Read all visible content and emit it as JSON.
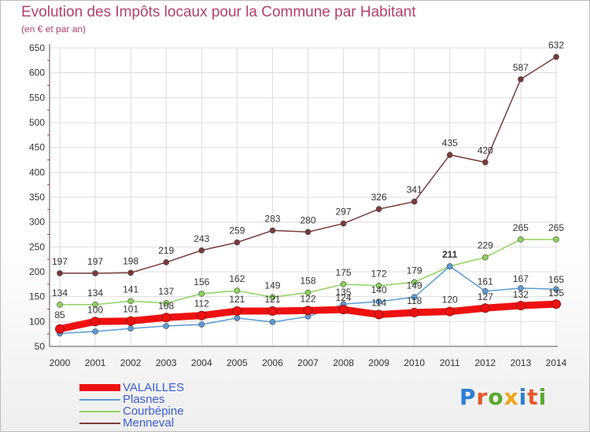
{
  "header": {
    "title": "Evolution des Impôts locaux pour la Commune par Habitant",
    "subtitle": "(en € et par an)"
  },
  "logo": {
    "text": "Proxiti",
    "letter_colors": [
      "#2b7fd6",
      "#e8562a",
      "#58a82e",
      "#f2a319",
      "#2b7fd6",
      "#e8562a",
      "#58a82e"
    ]
  },
  "chart_data": {
    "type": "line",
    "title": "Evolution des Impôts locaux pour la Commune par Habitant",
    "subtitle": "(en € et par an)",
    "xlabel": "",
    "ylabel": "",
    "x": [
      2000,
      2001,
      2002,
      2003,
      2004,
      2005,
      2006,
      2007,
      2008,
      2009,
      2010,
      2011,
      2012,
      2013,
      2014
    ],
    "ylim": [
      50,
      650
    ],
    "yticks": [
      50,
      100,
      150,
      200,
      250,
      300,
      350,
      400,
      450,
      500,
      550,
      600,
      650
    ],
    "grid": true,
    "legend_position": "bottom-left",
    "series": [
      {
        "name": "VALAILLES",
        "color": "#ee1111",
        "values": [
          85,
          100,
          101,
          108,
          112,
          121,
          121,
          122,
          124,
          114,
          118,
          120,
          127,
          132,
          135
        ],
        "labels": [
          "85",
          "100",
          "101",
          "108",
          "112",
          "121",
          "121",
          "122",
          "124",
          "114",
          "118",
          "120",
          "127",
          "132",
          "135"
        ]
      },
      {
        "name": "Plasnes",
        "color": "#5b9bd5",
        "values": [
          76,
          80,
          86,
          91,
          94,
          107,
          99,
          110,
          135,
          140,
          149,
          211,
          161,
          167,
          165
        ],
        "labels": [
          "",
          "",
          "",
          "",
          "",
          "",
          "",
          "",
          "135",
          "140",
          "149",
          "211",
          "161",
          "167",
          "165"
        ]
      },
      {
        "name": "Courbépine",
        "color": "#8ed35f",
        "values": [
          134,
          134,
          141,
          137,
          156,
          162,
          149,
          158,
          175,
          172,
          179,
          211,
          229,
          265,
          265
        ],
        "labels": [
          "134",
          "134",
          "141",
          "137",
          "156",
          "162",
          "149",
          "158",
          "175",
          "172",
          "179",
          "211",
          "229",
          "265",
          "265"
        ]
      },
      {
        "name": "Menneval",
        "color": "#7a3b3b",
        "values": [
          197,
          197,
          198,
          219,
          243,
          259,
          283,
          280,
          297,
          326,
          341,
          435,
          420,
          587,
          632
        ],
        "labels": [
          "197",
          "197",
          "198",
          "219",
          "243",
          "259",
          "283",
          "280",
          "297",
          "326",
          "341",
          "435",
          "420",
          "587",
          "632"
        ]
      }
    ]
  }
}
